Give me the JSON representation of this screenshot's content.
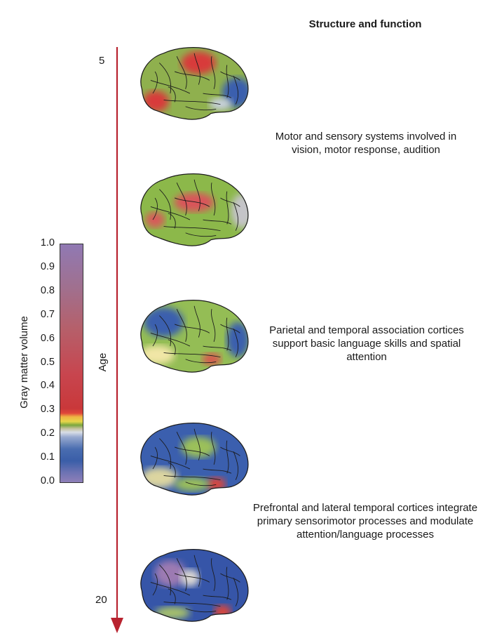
{
  "heading": "Structure and function",
  "age_axis": {
    "label": "Age",
    "start": "5",
    "end": "20"
  },
  "colorbar": {
    "label": "Gray matter volume",
    "ticks": [
      "1.0",
      "0.9",
      "0.8",
      "0.7",
      "0.6",
      "0.5",
      "0.4",
      "0.3",
      "0.2",
      "0.1",
      "0.0"
    ]
  },
  "descriptions": [
    "Motor and sensory systems involved in vision, motor response, audition",
    "Parietal and temporal association cortices support basic language skills and spatial attention",
    "Prefrontal and lateral temporal cortices integrate primary sensorimotor processes and modulate attention/language processes"
  ],
  "colors": {
    "arrow": "#b8232f",
    "high": "#d83a3a",
    "mid": "#8cb84a",
    "low": "#3b5fae",
    "very_low": "#8f7fb8"
  },
  "brains": [
    {
      "base": "#8fb04e",
      "blobs": [
        [
          "#d83a3a",
          150,
          40,
          40,
          26
        ],
        [
          "#d83a3a",
          52,
          128,
          30,
          24
        ],
        [
          "#3b5fae",
          238,
          108,
          34,
          34
        ],
        [
          "#c9d1e0",
          200,
          134,
          26,
          14
        ]
      ]
    },
    {
      "base": "#8cb84a",
      "blobs": [
        [
          "#d9555a",
          140,
          70,
          46,
          22
        ],
        [
          "#d85a5a",
          50,
          110,
          22,
          18
        ],
        [
          "#c4c4c8",
          250,
          90,
          26,
          40
        ]
      ]
    },
    {
      "base": "#94bd55",
      "blobs": [
        [
          "#3b5fae",
          70,
          55,
          46,
          34
        ],
        [
          "#3b5fae",
          240,
          95,
          26,
          40
        ],
        [
          "#d9574f",
          180,
          140,
          22,
          14
        ],
        [
          "#f1e6a6",
          55,
          130,
          40,
          22
        ]
      ]
    },
    {
      "base": "#3b5fae",
      "blobs": [
        [
          "#9bc05a",
          150,
          60,
          40,
          24
        ],
        [
          "#dcd5a0",
          60,
          130,
          42,
          24
        ],
        [
          "#d8463d",
          190,
          145,
          22,
          16
        ],
        [
          "#9bc05a",
          135,
          145,
          40,
          16
        ]
      ]
    },
    {
      "base": "#3655a8",
      "blobs": [
        [
          "#9c7ab2",
          85,
          60,
          36,
          30
        ],
        [
          "#dcd8d4",
          130,
          70,
          22,
          20
        ],
        [
          "#d8463d",
          205,
          148,
          20,
          16
        ],
        [
          "#a9c36a",
          90,
          150,
          40,
          14
        ]
      ]
    }
  ]
}
